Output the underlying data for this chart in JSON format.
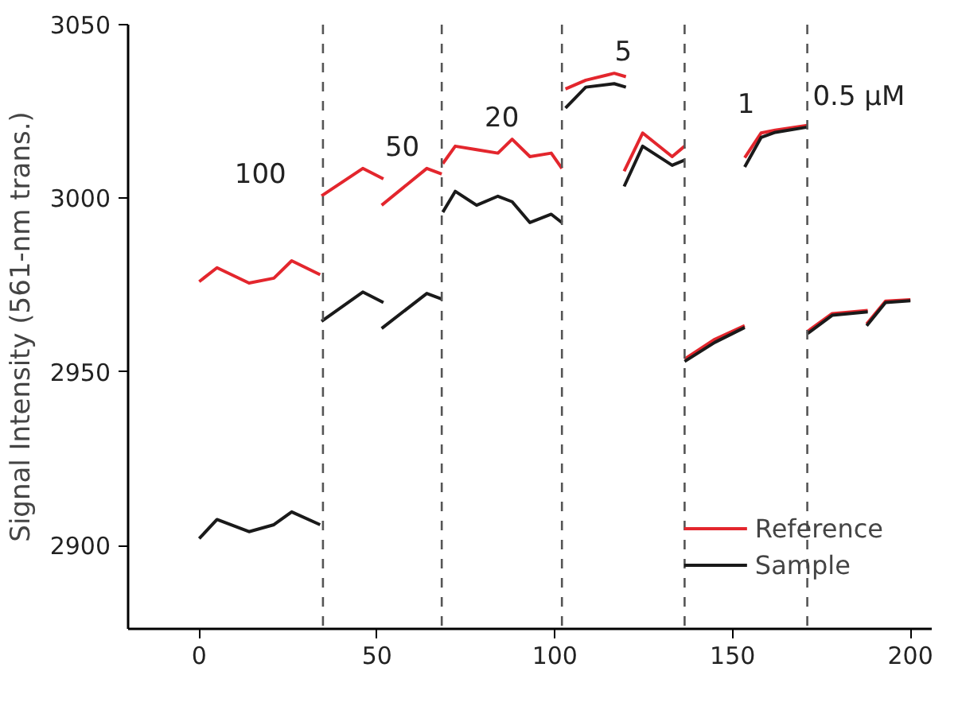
{
  "chart_data": {
    "type": "line",
    "ylabel": "Signal Intensity (561-nm trans.)",
    "x": [
      0,
      5,
      14,
      21,
      26,
      34,
      null,
      34.4,
      46,
      51.8,
      null,
      51.3,
      64,
      68.2,
      null,
      68.5,
      72,
      78,
      84,
      88,
      93,
      99,
      102,
      null,
      103,
      108.7,
      116.7,
      120,
      null,
      119.5,
      124.7,
      133,
      136.5,
      null,
      136.5,
      145,
      153.4,
      null,
      153.4,
      158,
      162,
      171,
      null,
      171,
      178,
      188,
      null,
      187.7,
      193,
      200
    ],
    "series": [
      {
        "name": "Reference",
        "color": "#e3262d",
        "values": [
          2976,
          2980,
          2975.6,
          2977,
          2982,
          2978,
          null,
          3000.7,
          3008.6,
          3005.6,
          null,
          2998,
          3008.6,
          3007,
          null,
          3010,
          3015,
          3014,
          3013,
          3017,
          3012,
          3013,
          3008.6,
          null,
          3031.5,
          3034,
          3036,
          3035,
          null,
          3007.8,
          3018.8,
          3012,
          3015,
          null,
          2953.7,
          2959.4,
          2963.3,
          null,
          3011.7,
          3018.8,
          3019.6,
          3021,
          null,
          2961.6,
          2966.8,
          2967.7,
          null,
          2963.8,
          2970.4,
          2970.8
        ]
      },
      {
        "name": "Sample",
        "color": "#1a1a1a",
        "values": [
          2902,
          2907.5,
          2904,
          2906,
          2909.7,
          2906,
          null,
          2964.6,
          2973,
          2970,
          null,
          2962.5,
          2972.6,
          2971,
          null,
          2996,
          3002,
          2998,
          3000.6,
          2999,
          2993,
          2995.4,
          2993,
          null,
          3026,
          3032,
          3033,
          3032,
          null,
          3003.4,
          3015,
          3009.5,
          3011,
          null,
          2953,
          2958.5,
          2962.8,
          null,
          3009,
          3017.5,
          3019,
          3020.5,
          null,
          2961,
          2966.3,
          2967.3,
          null,
          2963.3,
          2970,
          2970.5
        ]
      }
    ],
    "xlim": [
      -20,
      206
    ],
    "ylim": [
      2876,
      3050
    ],
    "xticks": [
      0,
      50,
      100,
      150,
      200
    ],
    "yticks": [
      2900,
      2950,
      3000,
      3050
    ],
    "ref_lines": [
      {
        "axis": "x",
        "value": 34.8,
        "color": "#555555",
        "line_style": "dashed"
      },
      {
        "axis": "x",
        "value": 68.2,
        "color": "#555555",
        "line_style": "dashed"
      },
      {
        "axis": "x",
        "value": 102,
        "color": "#555555",
        "line_style": "dashed"
      },
      {
        "axis": "x",
        "value": 136.5,
        "color": "#555555",
        "line_style": "dashed"
      },
      {
        "axis": "x",
        "value": 171,
        "color": "#555555",
        "line_style": "dashed"
      }
    ],
    "annotations": [
      "100",
      "50",
      "20",
      "5",
      "1",
      "0.5 μM"
    ],
    "grid": false,
    "legend": "bottom right",
    "marker": "none",
    "line_style": "solid"
  }
}
